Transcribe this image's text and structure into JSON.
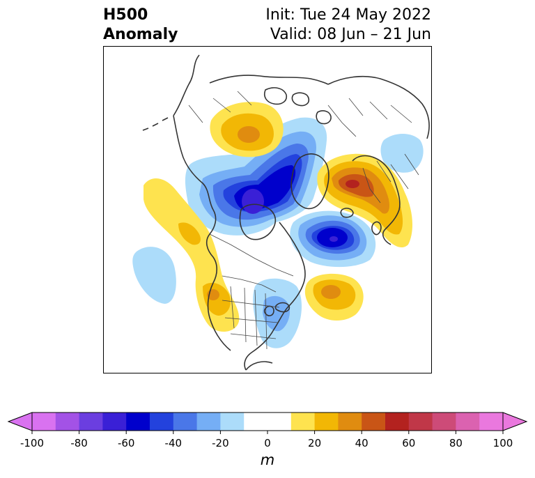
{
  "title": {
    "line1": "H500",
    "line2": "Anomaly",
    "init": "Init: Tue 24 May 2022",
    "valid": "Valid: 08 Jun – 21 Jun"
  },
  "colorbar": {
    "unit": "m",
    "extend": "both",
    "ticks": [
      "-100",
      "-80",
      "-60",
      "-40",
      "-20",
      "0",
      "20",
      "40",
      "60",
      "80",
      "100"
    ],
    "bins": [
      {
        "range": "-100 to -90",
        "color": "#d972f0"
      },
      {
        "range": "-90 to -80",
        "color": "#a352e6"
      },
      {
        "range": "-80 to -70",
        "color": "#6b3ee0"
      },
      {
        "range": "-70 to -60",
        "color": "#3a20d6"
      },
      {
        "range": "-60 to -50",
        "color": "#0000cc"
      },
      {
        "range": "-50 to -40",
        "color": "#2342dd"
      },
      {
        "range": "-40 to -30",
        "color": "#4a77e8"
      },
      {
        "range": "-30 to -20",
        "color": "#75aef5"
      },
      {
        "range": "-20 to -10",
        "color": "#acdcfa"
      },
      {
        "range": "-10 to 10",
        "color": "#ffffff"
      },
      {
        "range": "10 to 20",
        "color": "#fee34f"
      },
      {
        "range": "20 to 30",
        "color": "#f2b705"
      },
      {
        "range": "30 to 40",
        "color": "#e08c10"
      },
      {
        "range": "40 to 50",
        "color": "#c95516"
      },
      {
        "range": "50 to 60",
        "color": "#b3221f"
      },
      {
        "range": "60 to 70",
        "color": "#c03748"
      },
      {
        "range": "70 to 80",
        "color": "#cd4b78"
      },
      {
        "range": "80 to 90",
        "color": "#db62b0"
      },
      {
        "range": "90 to 100",
        "color": "#ea78de"
      }
    ],
    "under_color": "#d972f0",
    "over_color": "#ea78de"
  }
}
